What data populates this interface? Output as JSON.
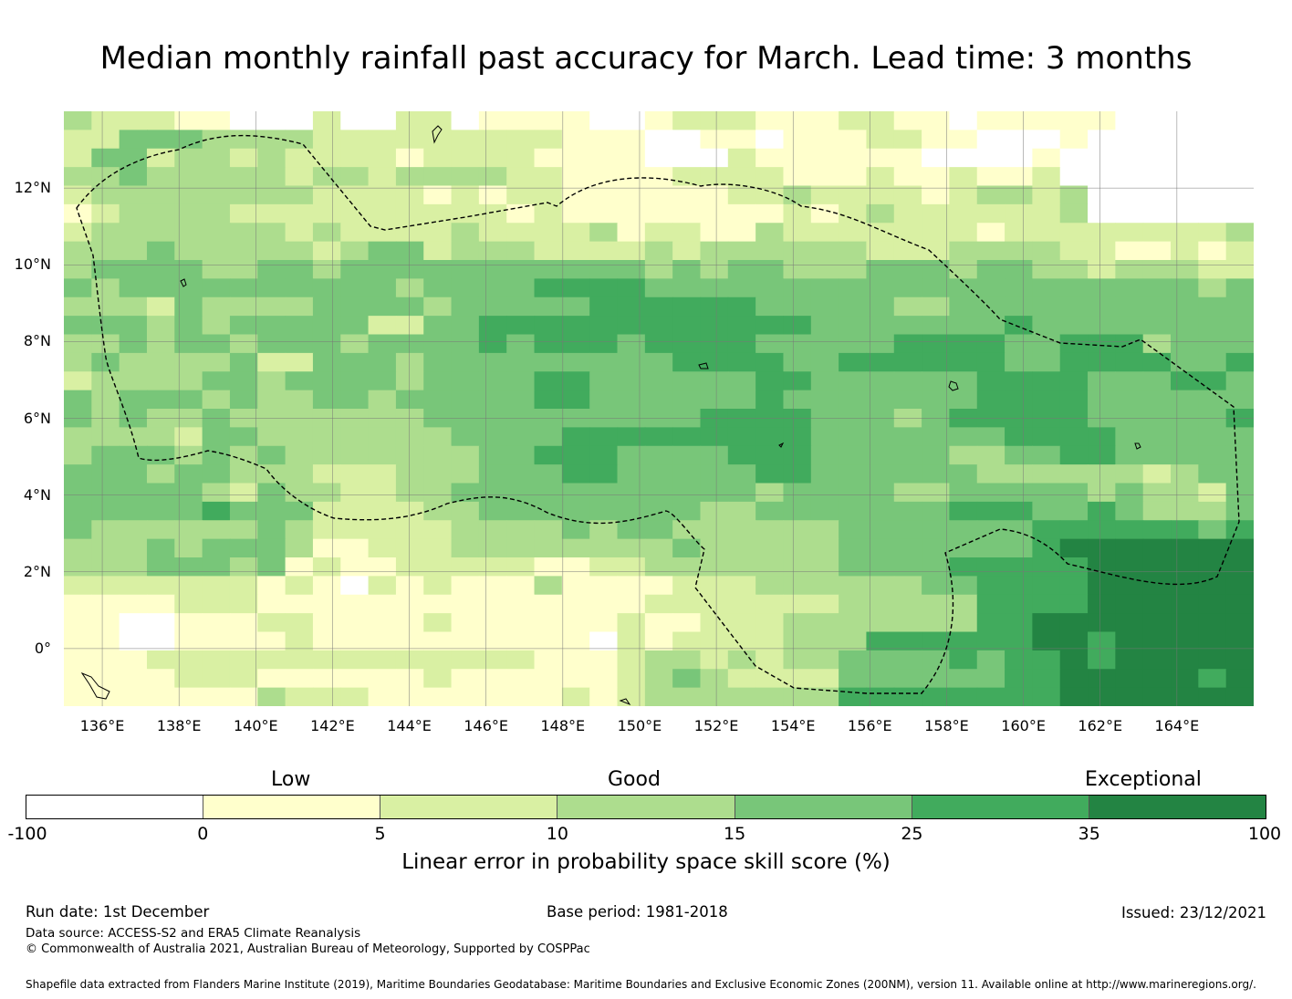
{
  "title": "Median monthly rainfall past accuracy for March. Lead time: 3 months",
  "map": {
    "lon_range": [
      135,
      166
    ],
    "lat_range": [
      -1.5,
      14
    ],
    "x_ticks": [
      "136°E",
      "138°E",
      "140°E",
      "142°E",
      "144°E",
      "146°E",
      "148°E",
      "150°E",
      "152°E",
      "154°E",
      "156°E",
      "158°E",
      "160°E",
      "162°E",
      "164°E"
    ],
    "y_ticks": [
      "12°N",
      "10°N",
      "8°N",
      "6°N",
      "4°N",
      "2°N",
      "0°"
    ],
    "colors": [
      "#ffffff",
      "#ffffcc",
      "#d9f0a3",
      "#addd8e",
      "#78c679",
      "#41ab5d",
      "#238443"
    ],
    "grid_rows": [
      "3222110002002201111001222111221101111100000",
      "2244433332222222221110011011122110001000000",
      "2442332322221222211110002111111000010000000",
      "3343333323323333221111222211121121120000000",
      "2333333332222121221111112232222123323000000",
      "1233332222222222121111111121232222223000000",
      "2333333323222232222312211322222221222222223",
      "3334333332344233322223233333322233332211212",
      "3444433443444444444443434433344434433233322",
      "4344444444443444455554444444444444444444434",
      "3332433334444344444555555444443344444444444",
      "4443434444422445555555555554444444544444444",
      "3343443444344445455545555444445555445553444",
      "3433334224443444444444555544555555445555445",
      "2333344344443444455444444554444445555444554",
      "4344434334434444455444444544444445555444444",
      "4343343333333444444444455554443455555444445",
      "3333244333333344445555555554444444555544444",
      "3444343433333334455544445554444433445544444",
      "4443443332223334445544444554444443333332344",
      "4444432433223344444444444344443344444343324",
      "4444454442222334444444433444444455544543334",
      "4333333432222233334344333333444444455555545",
      "3334344431122233333333433333444444456666666",
      "3334443412112222211223333333444455555666666",
      "2222222121021211131111222333333445555666666",
      "1111222111111111111112222222333335555666666",
      "1100111221111211111121122233333335566666666",
      "1100111121111111111021222233355555566566666",
      "1112222222222222211123323233444454556566666",
      "1111222111111211111123432222444444556666656",
      "1111111322211111112123333333555555556666666"
    ],
    "place_names": []
  },
  "categories": {
    "low": "Low",
    "good": "Good",
    "exceptional": "Exceptional"
  },
  "colorbar": {
    "ticks": [
      "-100",
      "0",
      "5",
      "10",
      "15",
      "25",
      "35",
      "100"
    ],
    "colors": [
      "#ffffff",
      "#ffffcc",
      "#d9f0a3",
      "#addd8e",
      "#78c679",
      "#41ab5d",
      "#238443"
    ],
    "label": "Linear error in probability space skill score (%)"
  },
  "footer": {
    "run_date": "Run date: 1st December",
    "base_period": "Base period: 1981-2018",
    "issued": "Issued: 23/12/2021",
    "data_source": "Data source: ACCESS-S2 and ERA5 Climate Reanalysis",
    "copyright": "© Commonwealth of Australia 2021, Australian Bureau of Meteorology, Supported by COSPPac",
    "shapefile": "Shapefile data extracted from Flanders Marine Institute (2019), Maritime Boundaries Geodatabase: Maritime Boundaries and Exclusive Economic Zones (200NM), version 11. Available online at http://www.marineregions.org/."
  }
}
